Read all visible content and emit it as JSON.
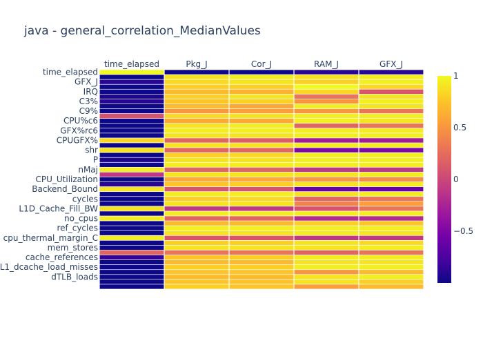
{
  "chart_data": {
    "type": "heatmap",
    "title": "java - general_correlation_MedianValues",
    "x_categories": [
      "time_elapsed",
      "Pkg_J",
      "Cor_J",
      "RAM_J",
      "GFX_J"
    ],
    "y_tick_labels": [
      "time_elapsed",
      "GFX_J",
      "IRQ",
      "C3%",
      "C9%",
      "CPU%c6",
      "GFX%rc6",
      "CPUGFX%",
      "shr",
      "P",
      "nMaj",
      "CPU_Utilization",
      "Backend_Bound",
      "cycles",
      "L1D_Cache_Fill_BW",
      "no_cpus",
      "ref_cycles",
      "cpu_thermal_margin_C",
      "mem_stores",
      "cache_references",
      "L1_dcache_load_misses",
      "dTLB_loads"
    ],
    "colorscale": "plasma",
    "zmin": -1,
    "zmax": 1,
    "colorbar_ticks": [
      1,
      0.5,
      0,
      -0.5
    ],
    "colorbar_tick_labels": [
      "1",
      "0.5",
      "0",
      "−0.5"
    ],
    "rows": 45,
    "z_columns": {
      "time_elapsed": [
        1,
        -1,
        -0.9,
        -1,
        -1,
        -0.95,
        -0.9,
        -1,
        -1,
        0.1,
        -1,
        -1,
        -1,
        -1,
        0.85,
        -1,
        0.9,
        -1,
        -0.95,
        -1,
        0.95,
        -0.1,
        -1,
        -0.9,
        0.9,
        -1,
        -1,
        -1,
        0.9,
        -1,
        0.95,
        -1,
        -1,
        -1,
        0.95,
        -1,
        -1,
        0.2,
        -0.85,
        -1,
        -1,
        -1,
        -1,
        -1,
        -1
      ],
      "Pkg_J": [
        -1,
        0.9,
        0.85,
        0.8,
        0.7,
        0.8,
        0.75,
        0.7,
        0.5,
        0.85,
        0.6,
        0.9,
        0.95,
        0.9,
        0.2,
        0.9,
        0.2,
        0.8,
        0.9,
        0.95,
        0.2,
        0.9,
        0.6,
        0.75,
        0.1,
        0.95,
        0.8,
        0.9,
        -0.1,
        0.95,
        0.2,
        0.7,
        0.95,
        0.9,
        0.1,
        0.8,
        0.9,
        0.3,
        0.75,
        0.7,
        0.8,
        0.75,
        0.7,
        0.75,
        0.8
      ],
      "Cor_J": [
        -1,
        0.95,
        0.9,
        0.8,
        0.65,
        0.9,
        0.8,
        0.6,
        0.55,
        0.9,
        0.6,
        0.95,
        0.95,
        0.9,
        0.15,
        0.9,
        0.2,
        0.85,
        0.9,
        0.95,
        0.2,
        0.9,
        0.6,
        0.8,
        0.1,
        0.95,
        0.85,
        0.9,
        -0.1,
        0.95,
        0.2,
        0.7,
        0.95,
        0.9,
        0.1,
        0.8,
        0.9,
        0.3,
        0.8,
        0.7,
        0.8,
        0.75,
        0.7,
        0.75,
        0.75
      ],
      "RAM_J": [
        -0.9,
        0.9,
        0.8,
        1,
        0.85,
        0.3,
        0.5,
        0.95,
        0.5,
        0.95,
        0.95,
        0.2,
        0.95,
        0.95,
        -0.3,
        0.95,
        -0.5,
        0.95,
        0.95,
        0.95,
        -0.1,
        0.9,
        0.5,
        0.9,
        -0.6,
        0.9,
        0.2,
        0.4,
        0.1,
        0.95,
        -0.2,
        0.8,
        0.95,
        0.95,
        -0.1,
        0.9,
        0.9,
        0.2,
        0.95,
        0.9,
        0.95,
        0.5,
        0.9,
        0.9,
        0.55
      ],
      "GFX_J": [
        -0.9,
        0.95,
        0.95,
        0.85,
        0.1,
        0.9,
        0.95,
        0.9,
        0.3,
        0.95,
        0.9,
        0.3,
        0.95,
        0.95,
        -0.3,
        0.95,
        -0.5,
        0.95,
        0.95,
        0.95,
        -0.1,
        0.95,
        0.45,
        0.95,
        -0.6,
        0.95,
        0.3,
        0.55,
        0.3,
        0.95,
        -0.2,
        0.75,
        0.95,
        0.9,
        -0.1,
        0.85,
        0.95,
        0.3,
        0.95,
        0.9,
        0.95,
        0.7,
        0.95,
        0.8,
        0.7
      ]
    }
  }
}
